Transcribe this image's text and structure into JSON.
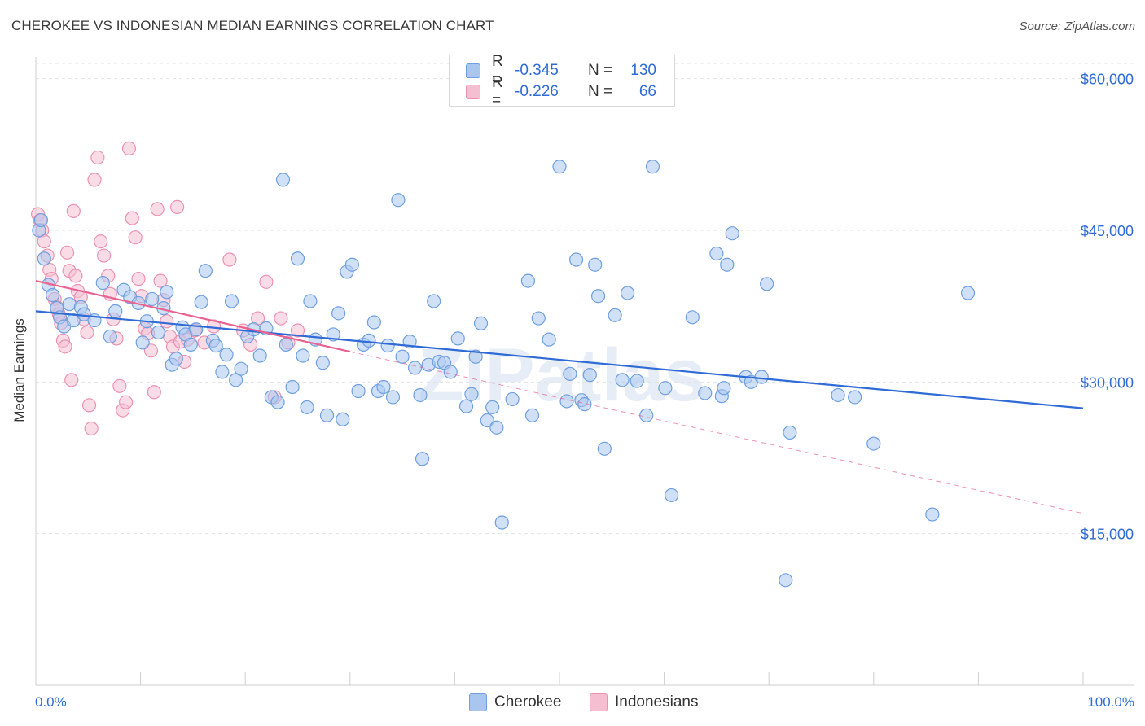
{
  "title": "CHEROKEE VS INDONESIAN MEDIAN EARNINGS CORRELATION CHART",
  "source": "Source: ZipAtlas.com",
  "watermark": "ZIPatlas",
  "legend_top": [
    {
      "r_label": "R =",
      "r_value": "-0.345",
      "n_label": "N =",
      "n_value": "130"
    },
    {
      "r_label": "R =",
      "r_value": "-0.226",
      "n_label": "N =",
      "n_value": "66"
    }
  ],
  "chart_data": {
    "type": "scatter",
    "title": "CHEROKEE VS INDONESIAN MEDIAN EARNINGS CORRELATION CHART",
    "xlabel": "",
    "ylabel": "Median Earnings",
    "xlim": [
      0,
      100
    ],
    "ylim": [
      0,
      62000
    ],
    "x_tick_labels": [
      "0.0%",
      "100.0%"
    ],
    "y_ticks": [
      15000,
      30000,
      45000,
      60000
    ],
    "y_tick_labels": [
      "$15,000",
      "$30,000",
      "$45,000",
      "$60,000"
    ],
    "grid": true,
    "legend_position": "top-center",
    "colors": {
      "cherokee_fill": "#a9c6ef",
      "cherokee_stroke": "#6f9fdf",
      "cherokee_line": "#2f6bd6",
      "indonesians_fill": "#f6bfd1",
      "indonesians_stroke": "#ec92b0",
      "indonesians_line": "#e8638f",
      "tick_text": "#2f6bd6",
      "grid": "#e2e2e2"
    },
    "series": [
      {
        "name": "Cherokee",
        "r": -0.345,
        "n": 130,
        "trend": {
          "x": [
            0,
            100
          ],
          "y": [
            37000,
            27400
          ]
        },
        "points": [
          [
            0.3,
            45000
          ],
          [
            0.5,
            46000
          ],
          [
            0.8,
            42200
          ],
          [
            1.2,
            39600
          ],
          [
            1.6,
            38600
          ],
          [
            2,
            37300
          ],
          [
            2.3,
            36400
          ],
          [
            2.7,
            35500
          ],
          [
            3.2,
            37700
          ],
          [
            3.6,
            36100
          ],
          [
            4.3,
            37400
          ],
          [
            4.6,
            36700
          ],
          [
            5.6,
            36100
          ],
          [
            6.4,
            39800
          ],
          [
            7.1,
            34500
          ],
          [
            7.6,
            37000
          ],
          [
            8.4,
            39100
          ],
          [
            9,
            38400
          ],
          [
            9.8,
            37800
          ],
          [
            10.2,
            33900
          ],
          [
            10.6,
            36000
          ],
          [
            11.1,
            38200
          ],
          [
            11.7,
            34900
          ],
          [
            12.2,
            37300
          ],
          [
            12.5,
            38900
          ],
          [
            13,
            31700
          ],
          [
            13.4,
            32300
          ],
          [
            14,
            35400
          ],
          [
            14.3,
            34700
          ],
          [
            14.8,
            33700
          ],
          [
            15.3,
            35200
          ],
          [
            15.8,
            37900
          ],
          [
            16.2,
            41000
          ],
          [
            16.9,
            34100
          ],
          [
            17.2,
            33600
          ],
          [
            17.8,
            31000
          ],
          [
            18.2,
            32700
          ],
          [
            18.7,
            38000
          ],
          [
            19.1,
            30200
          ],
          [
            19.6,
            31300
          ],
          [
            20.2,
            34500
          ],
          [
            20.8,
            35200
          ],
          [
            21.4,
            32600
          ],
          [
            22,
            35300
          ],
          [
            22.5,
            28500
          ],
          [
            23.1,
            28000
          ],
          [
            23.6,
            50000
          ],
          [
            23.9,
            33700
          ],
          [
            24.5,
            29500
          ],
          [
            25,
            42200
          ],
          [
            25.5,
            32600
          ],
          [
            25.9,
            27500
          ],
          [
            26.2,
            38000
          ],
          [
            26.7,
            34200
          ],
          [
            27.4,
            31900
          ],
          [
            27.8,
            26700
          ],
          [
            28.4,
            34700
          ],
          [
            28.9,
            36800
          ],
          [
            29.3,
            26300
          ],
          [
            29.7,
            40900
          ],
          [
            30.2,
            41600
          ],
          [
            30.8,
            29100
          ],
          [
            31.3,
            33700
          ],
          [
            31.8,
            34100
          ],
          [
            32.3,
            35900
          ],
          [
            32.7,
            29100
          ],
          [
            33.2,
            29500
          ],
          [
            33.6,
            33600
          ],
          [
            34.1,
            28500
          ],
          [
            34.6,
            48000
          ],
          [
            35,
            32500
          ],
          [
            35.7,
            34000
          ],
          [
            36.2,
            31400
          ],
          [
            36.7,
            28700
          ],
          [
            36.9,
            22400
          ],
          [
            37.5,
            31700
          ],
          [
            38,
            38000
          ],
          [
            38.5,
            32000
          ],
          [
            39,
            31900
          ],
          [
            39.6,
            31000
          ],
          [
            40.3,
            34300
          ],
          [
            41.1,
            27600
          ],
          [
            41.6,
            28800
          ],
          [
            42,
            32500
          ],
          [
            42.5,
            35800
          ],
          [
            43.1,
            26200
          ],
          [
            43.6,
            27500
          ],
          [
            44,
            25500
          ],
          [
            44.5,
            16100
          ],
          [
            45.5,
            28300
          ],
          [
            47,
            40000
          ],
          [
            47.4,
            26700
          ],
          [
            48,
            36300
          ],
          [
            49,
            34200
          ],
          [
            50,
            51300
          ],
          [
            50.7,
            28100
          ],
          [
            51,
            30800
          ],
          [
            51.6,
            42100
          ],
          [
            52.1,
            28200
          ],
          [
            52.4,
            27800
          ],
          [
            52.9,
            30700
          ],
          [
            53.4,
            41600
          ],
          [
            53.7,
            38500
          ],
          [
            54.3,
            23400
          ],
          [
            55.3,
            36600
          ],
          [
            56,
            30200
          ],
          [
            56.5,
            38800
          ],
          [
            57.4,
            30100
          ],
          [
            58.3,
            26700
          ],
          [
            58.9,
            51300
          ],
          [
            60.1,
            29400
          ],
          [
            60.7,
            18800
          ],
          [
            62.7,
            36400
          ],
          [
            63.9,
            28900
          ],
          [
            65,
            42700
          ],
          [
            65.5,
            28600
          ],
          [
            66,
            41600
          ],
          [
            66.5,
            44700
          ],
          [
            67.8,
            30500
          ],
          [
            68.3,
            30000
          ],
          [
            69.3,
            30500
          ],
          [
            69.8,
            39700
          ],
          [
            72,
            25000
          ],
          [
            71.6,
            10400
          ],
          [
            76.6,
            28700
          ],
          [
            78.2,
            28500
          ],
          [
            80,
            23900
          ],
          [
            85.6,
            16900
          ],
          [
            89,
            38800
          ],
          [
            65.7,
            29400
          ]
        ]
      },
      {
        "name": "Indonesians",
        "r": -0.226,
        "n": 66,
        "trend": {
          "x": [
            0,
            30
          ],
          "y": [
            40000,
            33000
          ]
        },
        "trend_extended": {
          "x": [
            30,
            100
          ],
          "y": [
            33000,
            17000
          ]
        },
        "points": [
          [
            0.2,
            46600
          ],
          [
            0.4,
            46000
          ],
          [
            0.6,
            45000
          ],
          [
            0.8,
            43900
          ],
          [
            1.1,
            42500
          ],
          [
            1.3,
            41100
          ],
          [
            1.5,
            40200
          ],
          [
            1.8,
            38200
          ],
          [
            2,
            37400
          ],
          [
            2.2,
            36700
          ],
          [
            2.4,
            35800
          ],
          [
            2.6,
            34100
          ],
          [
            2.8,
            33500
          ],
          [
            3,
            42800
          ],
          [
            3.2,
            41000
          ],
          [
            3.4,
            30200
          ],
          [
            3.6,
            46900
          ],
          [
            3.8,
            40500
          ],
          [
            4,
            39000
          ],
          [
            4.3,
            38400
          ],
          [
            4.6,
            36200
          ],
          [
            4.9,
            34900
          ],
          [
            5.1,
            27700
          ],
          [
            5.3,
            25400
          ],
          [
            5.6,
            50000
          ],
          [
            5.9,
            52200
          ],
          [
            6.2,
            43900
          ],
          [
            6.5,
            42500
          ],
          [
            6.9,
            40500
          ],
          [
            7.1,
            38700
          ],
          [
            7.4,
            36200
          ],
          [
            7.7,
            34300
          ],
          [
            8,
            29600
          ],
          [
            8.3,
            27200
          ],
          [
            8.6,
            28000
          ],
          [
            8.9,
            53100
          ],
          [
            9.2,
            46200
          ],
          [
            9.5,
            44300
          ],
          [
            9.8,
            40200
          ],
          [
            10.1,
            38500
          ],
          [
            10.4,
            35300
          ],
          [
            10.7,
            34800
          ],
          [
            11,
            33100
          ],
          [
            11.3,
            29000
          ],
          [
            11.6,
            47100
          ],
          [
            11.9,
            40000
          ],
          [
            12.2,
            38100
          ],
          [
            12.5,
            36000
          ],
          [
            12.8,
            34500
          ],
          [
            13.1,
            33500
          ],
          [
            13.5,
            47300
          ],
          [
            13.8,
            34000
          ],
          [
            14.2,
            32000
          ],
          [
            14.5,
            34200
          ],
          [
            15.2,
            35100
          ],
          [
            16.1,
            33900
          ],
          [
            17,
            35500
          ],
          [
            18.5,
            42100
          ],
          [
            19.8,
            35100
          ],
          [
            20.5,
            33700
          ],
          [
            21.2,
            36300
          ],
          [
            22,
            39900
          ],
          [
            22.8,
            28500
          ],
          [
            23.4,
            36300
          ],
          [
            24.1,
            33900
          ],
          [
            25,
            35100
          ]
        ]
      }
    ]
  }
}
